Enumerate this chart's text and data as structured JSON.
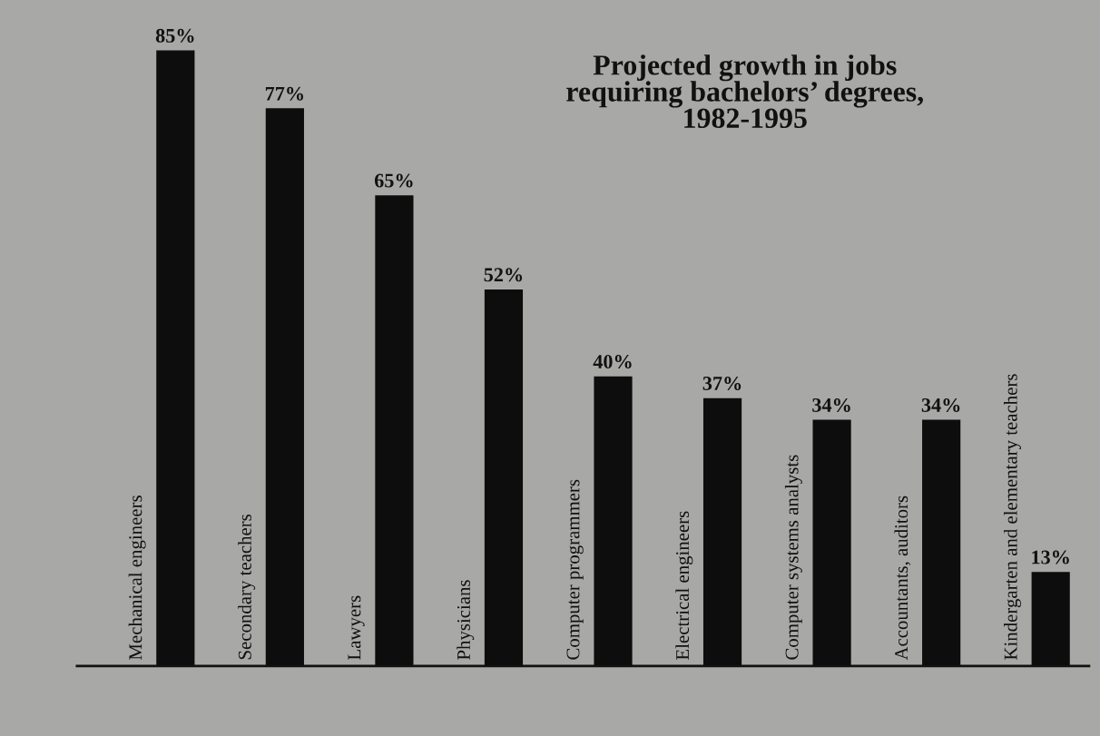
{
  "chart_data": {
    "type": "bar",
    "title": "Projected growth in jobs\nrequiring bachelors’ degrees,\n1982-1995",
    "categories": [
      "Mechanical engineers",
      "Secondary teachers",
      "Lawyers",
      "Physicians",
      "Computer programmers",
      "Electrical engineers",
      "Computer systems analysts",
      "Accountants, auditors",
      "Kindergarten and elementary teachers"
    ],
    "values": [
      85,
      77,
      65,
      52,
      40,
      37,
      34,
      34,
      13
    ],
    "value_labels": [
      "85%",
      "77%",
      "65%",
      "52%",
      "40%",
      "37%",
      "34%",
      "34%",
      "13%"
    ],
    "color": "#0d0d0d"
  }
}
